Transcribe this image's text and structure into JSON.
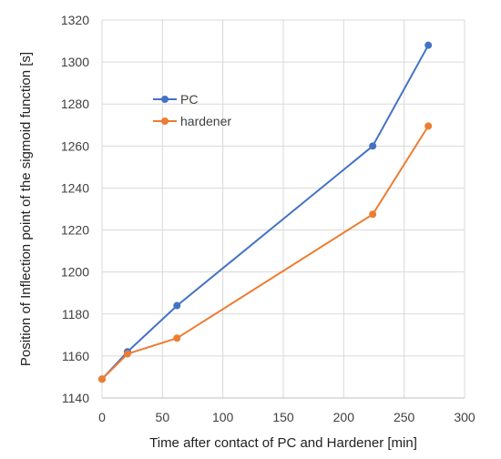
{
  "chart_data": {
    "type": "line",
    "xlabel": "Time after contact of PC and Hardener [min]",
    "ylabel": "Position of Inflection point of the sigmoid function [s]",
    "xlim": [
      0,
      300
    ],
    "ylim": [
      1140,
      1320
    ],
    "xticks": [
      "0",
      "50",
      "100",
      "150",
      "200",
      "250",
      "300"
    ],
    "yticks": [
      "1140",
      "1160",
      "1180",
      "1200",
      "1220",
      "1240",
      "1260",
      "1280",
      "1300",
      "1320"
    ],
    "grid": true,
    "legend_position": "upper-left",
    "series": [
      {
        "name": "PC",
        "color": "#4472C4",
        "points": [
          [
            0,
            1149
          ],
          [
            21,
            1162
          ],
          [
            62,
            1184
          ],
          [
            224,
            1260
          ],
          [
            270,
            1308
          ]
        ]
      },
      {
        "name": "hardener",
        "color": "#ED7D31",
        "points": [
          [
            0,
            1149
          ],
          [
            21,
            1161
          ],
          [
            62,
            1168.5
          ],
          [
            224,
            1227.5
          ],
          [
            270,
            1269.5
          ]
        ]
      }
    ]
  }
}
